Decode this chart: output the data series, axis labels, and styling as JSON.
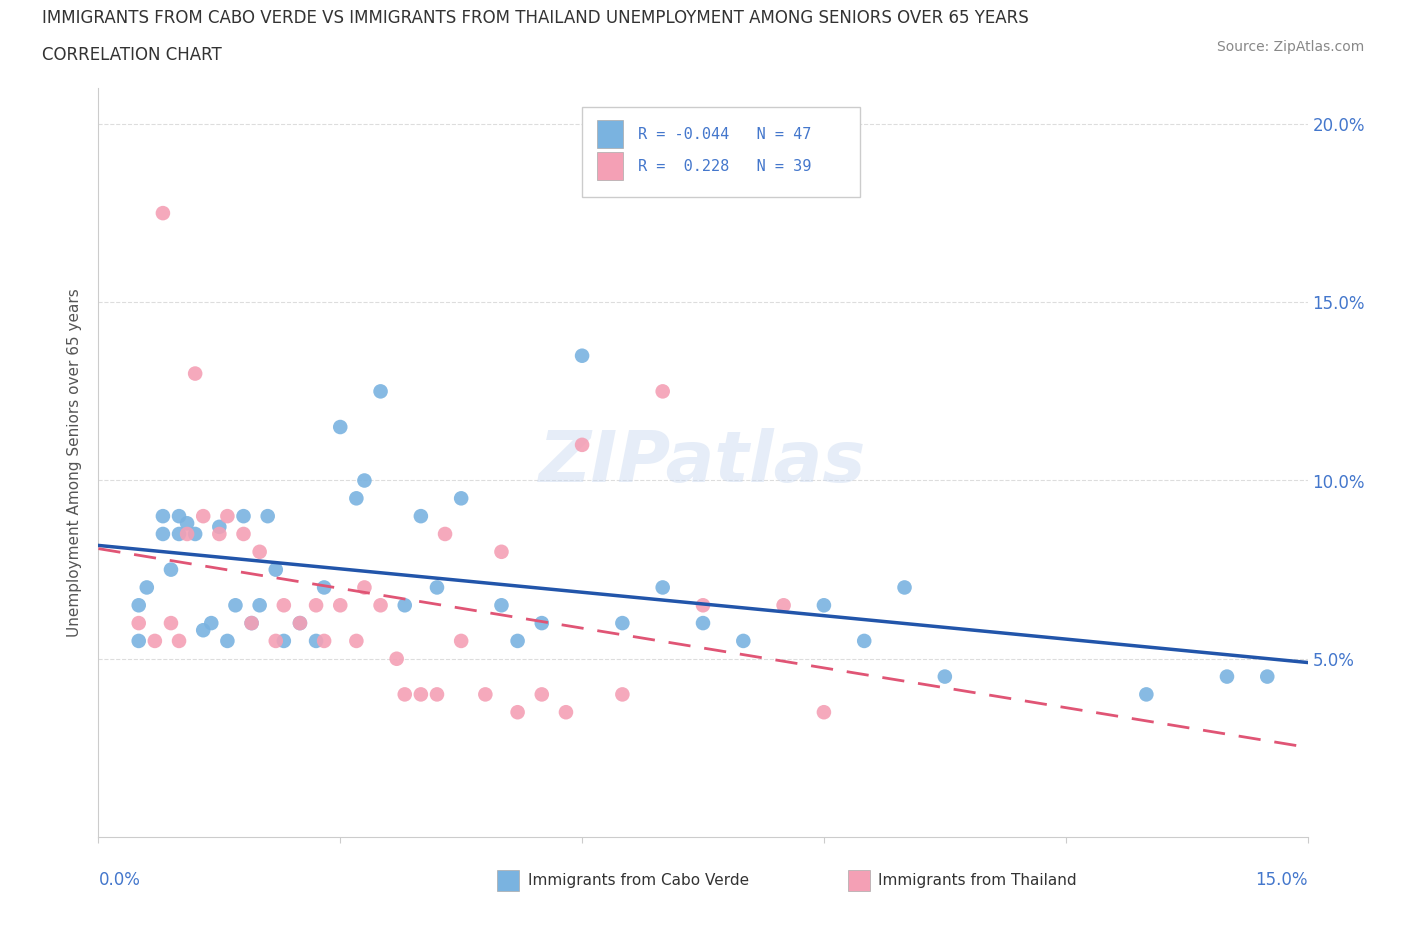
{
  "title_line1": "IMMIGRANTS FROM CABO VERDE VS IMMIGRANTS FROM THAILAND UNEMPLOYMENT AMONG SENIORS OVER 65 YEARS",
  "title_line2": "CORRELATION CHART",
  "source": "Source: ZipAtlas.com",
  "ylabel": "Unemployment Among Seniors over 65 years",
  "watermark": "ZIPatlas",
  "xlim": [
    0.0,
    0.15
  ],
  "ylim": [
    0.0,
    0.21
  ],
  "yticks": [
    0.05,
    0.1,
    0.15,
    0.2
  ],
  "r_cabo_verde": -0.044,
  "n_cabo_verde": 47,
  "r_thailand": 0.228,
  "n_thailand": 39,
  "cabo_verde_color": "#7ab3e0",
  "thailand_color": "#f4a0b5",
  "cabo_verde_line_color": "#2255aa",
  "thailand_line_color": "#e05575",
  "cabo_verde_x": [
    0.005,
    0.005,
    0.006,
    0.008,
    0.008,
    0.009,
    0.01,
    0.01,
    0.011,
    0.012,
    0.013,
    0.014,
    0.015,
    0.016,
    0.017,
    0.018,
    0.019,
    0.02,
    0.021,
    0.022,
    0.023,
    0.025,
    0.027,
    0.028,
    0.03,
    0.032,
    0.033,
    0.035,
    0.038,
    0.04,
    0.042,
    0.045,
    0.05,
    0.052,
    0.055,
    0.06,
    0.065,
    0.07,
    0.075,
    0.08,
    0.09,
    0.095,
    0.1,
    0.105,
    0.13,
    0.14,
    0.145
  ],
  "cabo_verde_y": [
    0.065,
    0.055,
    0.07,
    0.085,
    0.09,
    0.075,
    0.085,
    0.09,
    0.088,
    0.085,
    0.058,
    0.06,
    0.087,
    0.055,
    0.065,
    0.09,
    0.06,
    0.065,
    0.09,
    0.075,
    0.055,
    0.06,
    0.055,
    0.07,
    0.115,
    0.095,
    0.1,
    0.125,
    0.065,
    0.09,
    0.07,
    0.095,
    0.065,
    0.055,
    0.06,
    0.135,
    0.06,
    0.07,
    0.06,
    0.055,
    0.065,
    0.055,
    0.07,
    0.045,
    0.04,
    0.045,
    0.045
  ],
  "thailand_x": [
    0.005,
    0.007,
    0.008,
    0.009,
    0.01,
    0.011,
    0.012,
    0.013,
    0.015,
    0.016,
    0.018,
    0.019,
    0.02,
    0.022,
    0.023,
    0.025,
    0.027,
    0.028,
    0.03,
    0.032,
    0.033,
    0.035,
    0.037,
    0.038,
    0.04,
    0.042,
    0.043,
    0.045,
    0.048,
    0.05,
    0.052,
    0.055,
    0.058,
    0.06,
    0.065,
    0.07,
    0.075,
    0.085,
    0.09
  ],
  "thailand_y": [
    0.06,
    0.055,
    0.175,
    0.06,
    0.055,
    0.085,
    0.13,
    0.09,
    0.085,
    0.09,
    0.085,
    0.06,
    0.08,
    0.055,
    0.065,
    0.06,
    0.065,
    0.055,
    0.065,
    0.055,
    0.07,
    0.065,
    0.05,
    0.04,
    0.04,
    0.04,
    0.085,
    0.055,
    0.04,
    0.08,
    0.035,
    0.04,
    0.035,
    0.11,
    0.04,
    0.125,
    0.065,
    0.065,
    0.035
  ],
  "grid_color": "#dddddd",
  "title_color": "#333333",
  "axis_label_color": "#4477cc",
  "tick_label_color": "#4477cc",
  "background_color": "#ffffff"
}
